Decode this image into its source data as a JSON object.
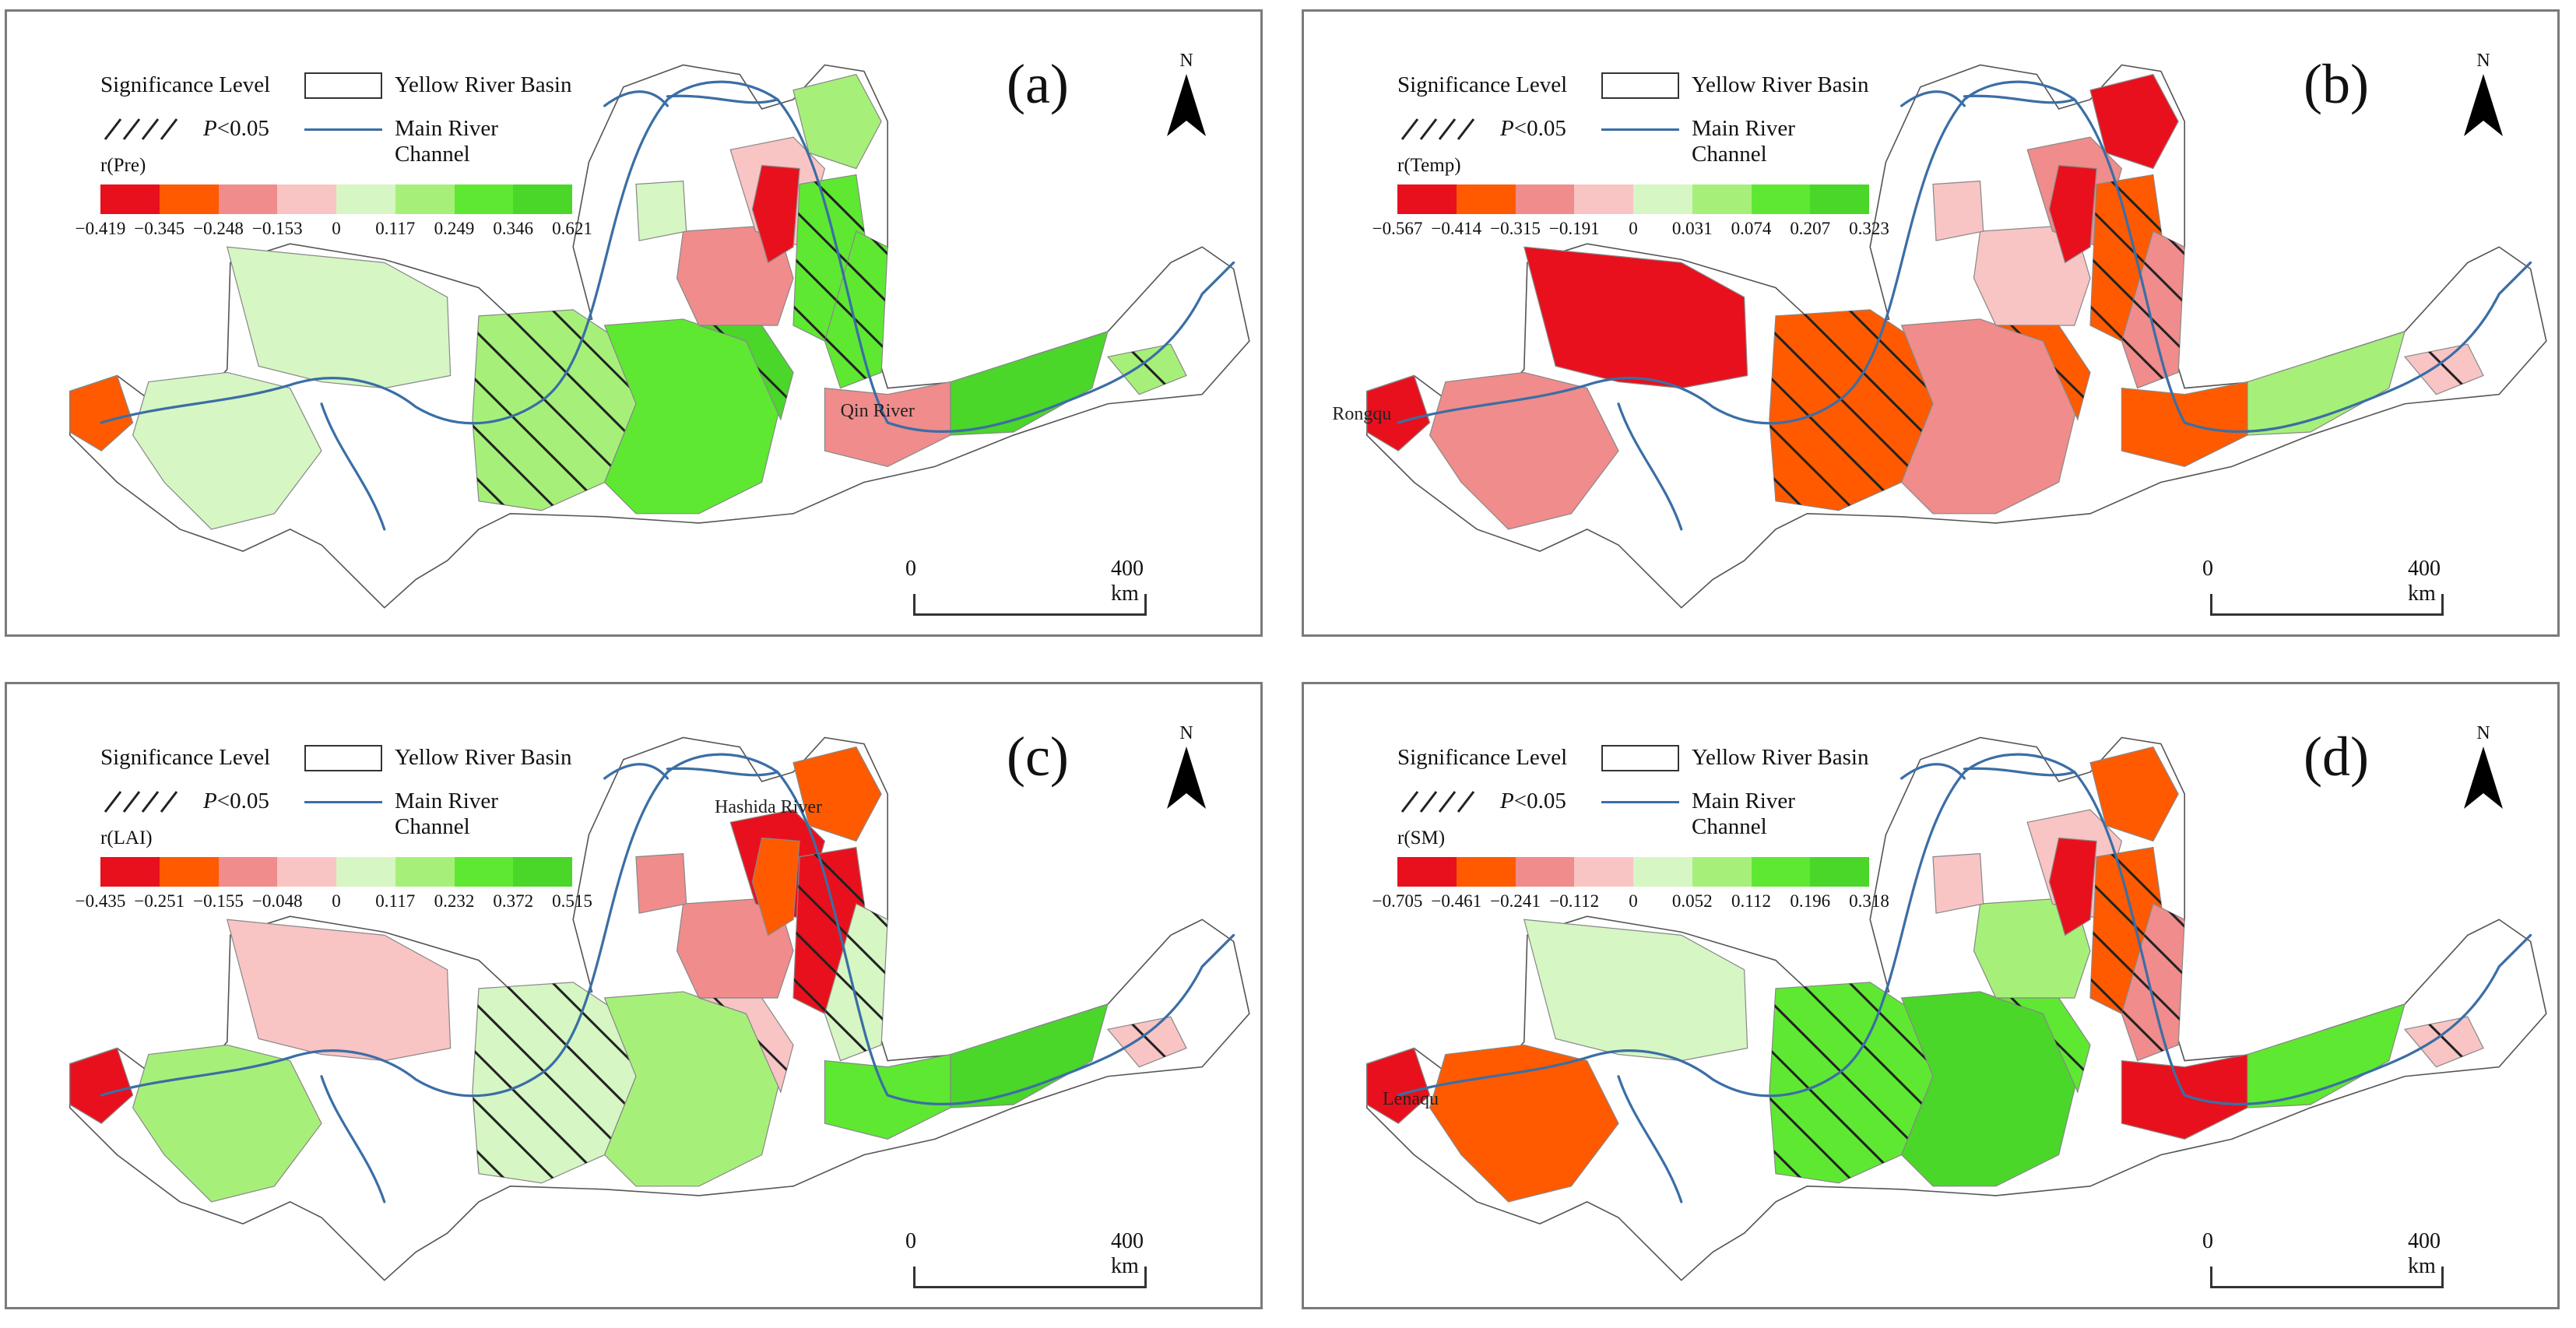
{
  "legend": {
    "significance_label": "Significance Level",
    "basin_label": "Yellow River Basin",
    "p_italic": "P",
    "p_rest": "<0.05",
    "channel_label": "Main River Channel"
  },
  "colors": {
    "red_scale": [
      "#e8101c",
      "#ff5a00",
      "#f08c8c",
      "#f9c4c4"
    ],
    "green_scale": [
      "#d6f6c4",
      "#a6f07a",
      "#5ee832",
      "#4bd62a"
    ],
    "river": "#3b6ea5",
    "outline": "#555555"
  },
  "panels": [
    {
      "label": "(a)",
      "variable": "r(Pre)",
      "ticks": [
        "−0.419",
        "−0.345",
        "−0.248",
        "−0.153",
        "0",
        "0.117",
        "0.249",
        "0.346",
        "0.621"
      ],
      "north": "N",
      "scale_zero": "0",
      "scale_end": "400  km",
      "river_label": "Qin River",
      "region_classes": [
        4,
        5,
        6,
        2,
        7,
        3,
        5,
        6,
        4,
        0,
        6,
        2,
        7,
        5,
        1,
        4
      ]
    },
    {
      "label": "(b)",
      "variable": "r(Temp)",
      "ticks": [
        "−0.567",
        "−0.414",
        "−0.315",
        "−0.191",
        "0",
        "0.031",
        "0.074",
        "0.207",
        "0.323"
      ],
      "north": "N",
      "scale_zero": "0",
      "scale_end": "400  km",
      "river_label": "Rongqu",
      "region_classes": [
        0,
        1,
        2,
        3,
        1,
        2,
        0,
        1,
        3,
        0,
        2,
        1,
        5,
        3,
        0,
        2
      ]
    },
    {
      "label": "(c)",
      "variable": "r(LAI)",
      "ticks": [
        "−0.435",
        "−0.251",
        "−0.155",
        "−0.048",
        "0",
        "0.117",
        "0.232",
        "0.372",
        "0.515"
      ],
      "north": "N",
      "scale_zero": "0",
      "scale_end": "400  km",
      "river_label": "Hashida River",
      "region_classes": [
        3,
        4,
        5,
        2,
        3,
        0,
        1,
        0,
        2,
        1,
        4,
        6,
        7,
        3,
        0,
        5
      ]
    },
    {
      "label": "(d)",
      "variable": "r(SM)",
      "ticks": [
        "−0.705",
        "−0.461",
        "−0.241",
        "−0.112",
        "0",
        "0.052",
        "0.112",
        "0.196",
        "0.318"
      ],
      "north": "N",
      "scale_zero": "0",
      "scale_end": "400  km",
      "river_label": "Lenaqu",
      "region_classes": [
        4,
        6,
        7,
        5,
        6,
        3,
        1,
        1,
        3,
        0,
        2,
        0,
        6,
        3,
        0,
        1
      ]
    }
  ]
}
